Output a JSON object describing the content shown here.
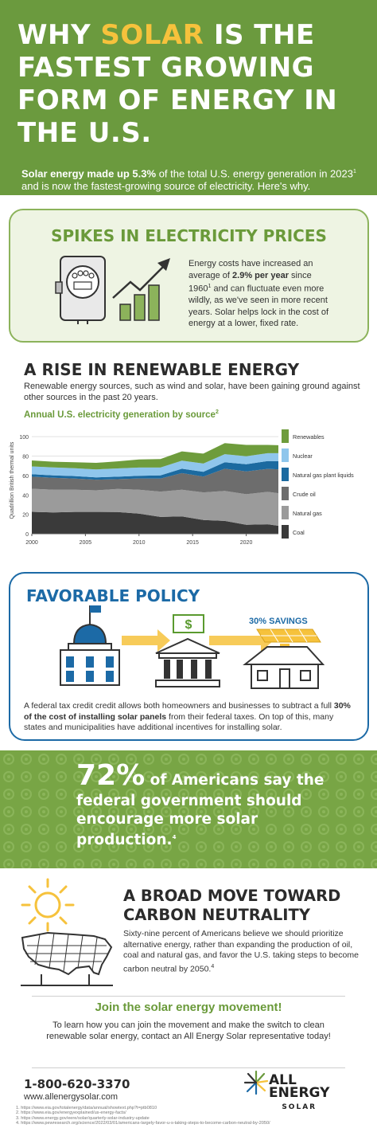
{
  "hero": {
    "title_pre": "WHY ",
    "title_highlight": "SOLAR",
    "title_post": " IS THE FASTEST GROWING FORM OF ENERGY IN THE U.S.",
    "subtitle_bold": "Solar energy made up 5.3%",
    "subtitle_rest": " of the total U.S. energy generation in 2023",
    "subtitle_sup": "1",
    "subtitle_end": " and is now the fastest-growing source of electricity. Here's why."
  },
  "prices": {
    "title": "SPIKES IN ELECTRICITY PRICES",
    "text_pre": "Energy costs have increased an average of ",
    "text_bold": "2.9% per year",
    "text_mid": " since 1960",
    "text_sup": "1",
    "text_post": " and can fluctuate even more wildly, as we've seen in more recent years. Solar helps lock in the cost of energy at a lower, fixed rate."
  },
  "renewable": {
    "title": "A RISE IN RENEWABLE ENERGY",
    "description": "Renewable energy sources, such as wind and solar, have been gaining ground against other sources in the past 20 years.",
    "chart_title": "Annual U.S. electricity generation by source",
    "chart_title_sup": "2"
  },
  "chart_data": {
    "type": "area",
    "title": "Annual U.S. electricity generation by source",
    "ylabel": "Quadrillion British thermal units",
    "xlabel": "",
    "ylim": [
      0,
      110
    ],
    "xlim": [
      2000,
      2023
    ],
    "x_ticks": [
      2000,
      2005,
      2010,
      2015,
      2020
    ],
    "y_ticks": [
      0,
      20,
      40,
      60,
      80,
      100
    ],
    "legend_position": "right",
    "x": [
      2000,
      2002,
      2004,
      2006,
      2008,
      2010,
      2012,
      2014,
      2016,
      2018,
      2020,
      2022,
      2023
    ],
    "series": [
      {
        "name": "Coal",
        "color": "#3a3a3a",
        "values": [
          22.6,
          21.9,
          22.5,
          22.5,
          22.4,
          20.8,
          17.3,
          17.9,
          14.2,
          13.2,
          9.2,
          9.8,
          8.2
        ]
      },
      {
        "name": "Natural gas",
        "color": "#9b9b9b",
        "values": [
          23.8,
          23.5,
          22.9,
          22.2,
          23.8,
          24.6,
          26.1,
          27.4,
          28.4,
          31.0,
          31.5,
          33.4,
          33.6
        ]
      },
      {
        "name": "Crude oil",
        "color": "#6d6d6d",
        "values": [
          12.4,
          12.2,
          11.5,
          11.0,
          10.0,
          11.6,
          13.4,
          17.2,
          16.3,
          22.8,
          23.6,
          23.6,
          24.6
        ]
      },
      {
        "name": "Natural gas plant liquids",
        "color": "#1b6aa0",
        "values": [
          2.6,
          2.6,
          2.5,
          2.4,
          2.6,
          2.8,
          3.3,
          4.5,
          5.0,
          6.6,
          7.3,
          8.1,
          8.4
        ]
      },
      {
        "name": "Nuclear",
        "color": "#8fc6ec",
        "values": [
          8.0,
          8.1,
          8.2,
          8.2,
          8.5,
          8.4,
          8.1,
          8.3,
          8.4,
          8.4,
          8.3,
          8.1,
          8.2
        ]
      },
      {
        "name": "Renewables",
        "color": "#6e9c3c",
        "values": [
          6.1,
          5.9,
          6.1,
          6.8,
          7.3,
          8.3,
          8.8,
          9.6,
          10.3,
          11.4,
          11.6,
          8.5,
          8.2
        ]
      }
    ]
  },
  "policy": {
    "title": "FAVORABLE POLICY",
    "savings_label": "30% SAVINGS",
    "text_pre": "A federal tax credit credit allows both homeowners and businesses to subtract a full ",
    "text_bold": "30% of the cost of installing solar panels",
    "text_post": " from their federal taxes. On top of this, many states and municipalities have additional incentives for installing solar."
  },
  "stat": {
    "percent": "72%",
    "rest": " of Americans say the federal government should encourage more solar production.",
    "sup": "4"
  },
  "carbon": {
    "title": "A BROAD MOVE TOWARD CARBON NEUTRALITY",
    "text": "Sixty-nine percent of Americans believe we should prioritize alternative energy, rather than expanding the production of oil, coal and natural gas, and favor the U.S. taking steps to become carbon neutral by 2050.",
    "sup": "4"
  },
  "cta": {
    "title": "Join the solar energy movement!",
    "text": "To learn how you can join the movement and make the switch to clean renewable solar energy, contact an All Energy Solar representative today!"
  },
  "footer": {
    "phone": "1-800-620-3370",
    "website": "www.allenergysolar.com",
    "logo_line1": "ALL",
    "logo_line2": "ENERGY",
    "logo_line3": "SOLAR",
    "references": [
      "1. https://www.eia.gov/totalenergy/data/annual/showtext.php?t=ptb0810",
      "2. https://www.eia.gov/energyexplained/us-energy-facts/",
      "3. https://www.energy.gov/eere/solar/quarterly-solar-industry-update",
      "4. https://www.pewresearch.org/science/2022/03/01/americans-largely-favor-u-s-taking-steps-to-become-carbon-neutral-by-2050/"
    ]
  },
  "colors": {
    "green": "#6b9a3e",
    "yellow": "#f6c23c",
    "blue": "#1c6aa6"
  }
}
